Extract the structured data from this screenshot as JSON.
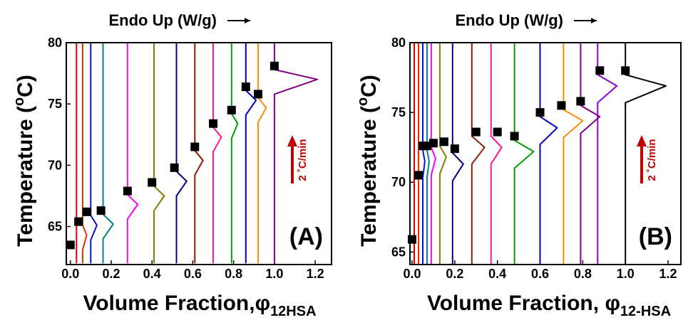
{
  "chart_data": [
    {
      "type": "line",
      "title": "Endo Up (W/g)",
      "panel_label": "(A)",
      "annotation": "2 ˚C/min",
      "y_label": "Temperature (",
      "y_label_sup": "o",
      "y_label_end": "C)",
      "x_label": "Volume Fraction,",
      "x_symbol": "φ",
      "x_subscript": "12HSA",
      "xlim": [
        -0.02,
        1.28
      ],
      "ylim": [
        61.9,
        80
      ],
      "xticks": [
        {
          "value": 0,
          "label": "0.0"
        },
        {
          "value": 0.2,
          "label": "0.2"
        },
        {
          "value": 0.4,
          "label": "0.4"
        },
        {
          "value": 0.6,
          "label": "0.6"
        },
        {
          "value": 0.8,
          "label": "0.8"
        },
        {
          "value": 1,
          "label": "1.0"
        },
        {
          "value": 1.2,
          "label": "1.2"
        }
      ],
      "yticks": [
        65,
        70,
        75,
        80
      ],
      "series": [
        {
          "color": "#d00000",
          "x": [
            0.03,
            0.03
          ],
          "y": [
            80,
            62
          ]
        },
        {
          "color": "#e03000",
          "x": [
            0.06,
            0.06,
            0.08,
            0.06,
            0.06
          ],
          "y": [
            80,
            65.1,
            64.3,
            63.1,
            62
          ]
        },
        {
          "color": "#1010c0",
          "x": [
            0.1,
            0.1,
            0.13,
            0.1,
            0.1
          ],
          "y": [
            80,
            65.9,
            65.1,
            63.9,
            62
          ]
        },
        {
          "color": "#008080",
          "x": [
            0.16,
            0.16,
            0.21,
            0.16,
            0.16
          ],
          "y": [
            80,
            66.0,
            65.2,
            64.0,
            62
          ]
        },
        {
          "color": "#ff00ff",
          "x": [
            0.28,
            0.28,
            0.33,
            0.28,
            0.28
          ],
          "y": [
            80,
            67.6,
            66.8,
            65.6,
            62
          ]
        },
        {
          "color": "#808000",
          "x": [
            0.41,
            0.41,
            0.46,
            0.41,
            0.41
          ],
          "y": [
            80,
            68.3,
            67.5,
            66.3,
            62
          ]
        },
        {
          "color": "#000080",
          "x": [
            0.52,
            0.52,
            0.57,
            0.52,
            0.52
          ],
          "y": [
            80,
            69.5,
            68.7,
            67.5,
            62
          ]
        },
        {
          "color": "#8b1a00",
          "x": [
            0.61,
            0.61,
            0.65,
            0.61,
            0.61
          ],
          "y": [
            80,
            71.2,
            70.4,
            69.2,
            62
          ]
        },
        {
          "color": "#ff1493",
          "x": [
            0.7,
            0.7,
            0.74,
            0.7,
            0.7
          ],
          "y": [
            80,
            73.1,
            72.3,
            71.1,
            62
          ]
        },
        {
          "color": "#00a000",
          "x": [
            0.79,
            0.79,
            0.82,
            0.79,
            0.79
          ],
          "y": [
            80,
            74.2,
            73.4,
            72.2,
            62
          ]
        },
        {
          "color": "#0000c0",
          "x": [
            0.86,
            0.86,
            0.91,
            0.86,
            0.86
          ],
          "y": [
            80,
            76.1,
            75.3,
            74.1,
            62
          ]
        },
        {
          "color": "#ff8c00",
          "x": [
            0.92,
            0.92,
            0.96,
            0.92,
            0.92
          ],
          "y": [
            80,
            75.5,
            74.7,
            73.5,
            62
          ]
        },
        {
          "color": "#800080",
          "x": [
            1.0,
            1.0,
            1.21,
            1.0,
            1.0
          ],
          "y": [
            80,
            77.8,
            77.0,
            75.8,
            62
          ]
        }
      ],
      "markers": {
        "color": "#000000",
        "x": [
          0.0,
          0.04,
          0.08,
          0.15,
          0.28,
          0.4,
          0.51,
          0.61,
          0.7,
          0.79,
          0.86,
          0.92,
          1.0
        ],
        "y": [
          63.5,
          65.4,
          66.2,
          66.3,
          67.9,
          68.6,
          69.8,
          71.5,
          73.4,
          74.5,
          76.4,
          75.8,
          78.1
        ]
      },
      "annotation_color": "#c00000"
    },
    {
      "type": "line",
      "title": "Endo Up (W/g)",
      "panel_label": "(B)",
      "annotation": "2 ˚C/min",
      "y_label": "Temperature (",
      "y_label_sup": "o",
      "y_label_end": "C)",
      "x_label": "Volume Fraction, ",
      "x_symbol": "φ",
      "x_subscript": "12-HSA",
      "xlim": [
        -0.01,
        1.26
      ],
      "ylim": [
        64.1,
        80
      ],
      "xticks": [
        {
          "value": 0,
          "label": "0.0"
        },
        {
          "value": 0.2,
          "label": "0.2"
        },
        {
          "value": 0.4,
          "label": "0.4"
        },
        {
          "value": 0.6,
          "label": "0.6"
        },
        {
          "value": 0.8,
          "label": "0.8"
        },
        {
          "value": 1,
          "label": "1.0"
        },
        {
          "value": 1.2,
          "label": "1.2"
        }
      ],
      "yticks": [
        65,
        70,
        75,
        80
      ],
      "series": [
        {
          "color": "#d00000",
          "x": [
            0.01,
            0.01
          ],
          "y": [
            80,
            64.1
          ]
        },
        {
          "color": "#e03000",
          "x": [
            0.03,
            0.03
          ],
          "y": [
            80,
            64.1
          ]
        },
        {
          "color": "#1010c0",
          "x": [
            0.05,
            0.05,
            0.06,
            0.05,
            0.05
          ],
          "y": [
            80,
            72.3,
            71.5,
            70.3,
            64.1
          ]
        },
        {
          "color": "#008080",
          "x": [
            0.07,
            0.07,
            0.08,
            0.07,
            0.07
          ],
          "y": [
            80,
            72.3,
            71.5,
            70.3,
            64.1
          ]
        },
        {
          "color": "#ff00ff",
          "x": [
            0.09,
            0.09,
            0.11,
            0.09,
            0.09
          ],
          "y": [
            80,
            72.5,
            71.7,
            70.5,
            64.1
          ]
        },
        {
          "color": "#808000",
          "x": [
            0.13,
            0.13,
            0.16,
            0.13,
            0.13
          ],
          "y": [
            80,
            72.6,
            71.8,
            70.6,
            64.1
          ]
        },
        {
          "color": "#000080",
          "x": [
            0.19,
            0.19,
            0.24,
            0.19,
            0.19
          ],
          "y": [
            80,
            72.1,
            71.3,
            70.1,
            64.1
          ]
        },
        {
          "color": "#8b1a00",
          "x": [
            0.28,
            0.28,
            0.34,
            0.28,
            0.28
          ],
          "y": [
            80,
            73.3,
            72.5,
            71.3,
            64.1
          ]
        },
        {
          "color": "#ff1493",
          "x": [
            0.37,
            0.37,
            0.42,
            0.37,
            0.37
          ],
          "y": [
            80,
            73.3,
            72.5,
            71.3,
            64.1
          ]
        },
        {
          "color": "#00a000",
          "x": [
            0.48,
            0.48,
            0.57,
            0.48,
            0.48
          ],
          "y": [
            80,
            73.0,
            72.2,
            71.0,
            64.1
          ]
        },
        {
          "color": "#0000c0",
          "x": [
            0.6,
            0.6,
            0.68,
            0.6,
            0.6
          ],
          "y": [
            80,
            74.7,
            73.9,
            72.7,
            64.1
          ]
        },
        {
          "color": "#ff8c00",
          "x": [
            0.71,
            0.71,
            0.8,
            0.71,
            0.71
          ],
          "y": [
            80,
            75.2,
            74.4,
            73.2,
            64.1
          ]
        },
        {
          "color": "#800080",
          "x": [
            0.79,
            0.79,
            0.88,
            0.79,
            0.79
          ],
          "y": [
            80,
            75.5,
            74.7,
            73.5,
            64.1
          ]
        },
        {
          "color": "#9400d3",
          "x": [
            0.87,
            0.87,
            0.96,
            0.87,
            0.87
          ],
          "y": [
            80,
            77.7,
            76.9,
            75.7,
            64.1
          ]
        },
        {
          "color": "#000000",
          "x": [
            1.0,
            1.0,
            1.19,
            1.0,
            1.0
          ],
          "y": [
            80,
            77.7,
            76.9,
            75.7,
            64.1
          ]
        }
      ],
      "markers": {
        "color": "#000000",
        "x": [
          0.0,
          0.03,
          0.05,
          0.07,
          0.1,
          0.15,
          0.2,
          0.3,
          0.4,
          0.48,
          0.6,
          0.7,
          0.79,
          0.88,
          1.0
        ],
        "y": [
          65.9,
          70.5,
          72.6,
          72.6,
          72.8,
          72.9,
          72.4,
          73.6,
          73.6,
          73.3,
          75.0,
          75.5,
          75.8,
          78.0,
          78.0
        ]
      },
      "annotation_color": "#c00000"
    }
  ]
}
